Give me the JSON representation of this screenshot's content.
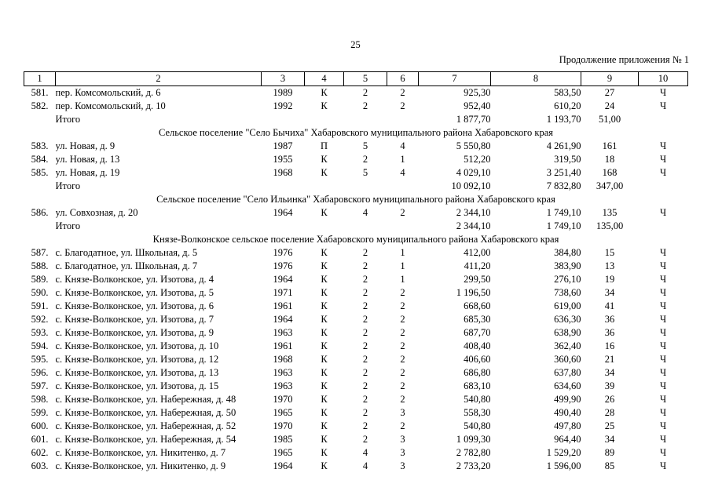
{
  "page": {
    "number": "25",
    "continuation": "Продолжение приложения № 1"
  },
  "table": {
    "columns": [
      "1",
      "2",
      "3",
      "4",
      "5",
      "6",
      "7",
      "8",
      "9",
      "10"
    ],
    "total_label": "Итого",
    "rows": [
      {
        "type": "data",
        "num": "581.",
        "address": "пер. Комсомольский, д. 6",
        "year": "1989",
        "material": "К",
        "floors": "2",
        "entrances": "2",
        "total_area": "925,30",
        "living_area": "583,50",
        "residents": "27",
        "ownership": "Ч"
      },
      {
        "type": "data",
        "num": "582.",
        "address": "пер. Комсомольский, д. 10",
        "year": "1992",
        "material": "К",
        "floors": "2",
        "entrances": "2",
        "total_area": "952,40",
        "living_area": "610,20",
        "residents": "24",
        "ownership": "Ч"
      },
      {
        "type": "total",
        "label": "Итого",
        "total_area": "1 877,70",
        "living_area": "1 193,70",
        "residents": "51,00"
      },
      {
        "type": "section",
        "title": "Сельское поселение \"Село Бычиха\" Хабаровского муниципального района Хабаровского края"
      },
      {
        "type": "data",
        "num": "583.",
        "address": "ул. Новая, д. 9",
        "year": "1987",
        "material": "П",
        "floors": "5",
        "entrances": "4",
        "total_area": "5 550,80",
        "living_area": "4 261,90",
        "residents": "161",
        "ownership": "Ч"
      },
      {
        "type": "data",
        "num": "584.",
        "address": "ул. Новая, д. 13",
        "year": "1955",
        "material": "К",
        "floors": "2",
        "entrances": "1",
        "total_area": "512,20",
        "living_area": "319,50",
        "residents": "18",
        "ownership": "Ч"
      },
      {
        "type": "data",
        "num": "585.",
        "address": "ул. Новая, д. 19",
        "year": "1968",
        "material": "К",
        "floors": "5",
        "entrances": "4",
        "total_area": "4 029,10",
        "living_area": "3 251,40",
        "residents": "168",
        "ownership": "Ч"
      },
      {
        "type": "total",
        "label": "Итого",
        "total_area": "10 092,10",
        "living_area": "7 832,80",
        "residents": "347,00"
      },
      {
        "type": "section",
        "title": "Сельское поселение \"Село Ильинка\" Хабаровского муниципального района Хабаровского края"
      },
      {
        "type": "data",
        "num": "586.",
        "address": "ул. Совхозная, д. 20",
        "year": "1964",
        "material": "К",
        "floors": "4",
        "entrances": "2",
        "total_area": "2 344,10",
        "living_area": "1 749,10",
        "residents": "135",
        "ownership": "Ч"
      },
      {
        "type": "total",
        "label": "Итого",
        "total_area": "2 344,10",
        "living_area": "1 749,10",
        "residents": "135,00"
      },
      {
        "type": "section",
        "title": "Князе-Волконское сельское поселение Хабаровского муниципального района Хабаровского края"
      },
      {
        "type": "data",
        "num": "587.",
        "address": "с. Благодатное, ул. Школьная, д. 5",
        "year": "1976",
        "material": "К",
        "floors": "2",
        "entrances": "1",
        "total_area": "412,00",
        "living_area": "384,80",
        "residents": "15",
        "ownership": "Ч"
      },
      {
        "type": "data",
        "num": "588.",
        "address": "с. Благодатное, ул. Школьная, д. 7",
        "year": "1976",
        "material": "К",
        "floors": "2",
        "entrances": "1",
        "total_area": "411,20",
        "living_area": "383,90",
        "residents": "13",
        "ownership": "Ч"
      },
      {
        "type": "data",
        "num": "589.",
        "address": "с. Князе-Волконское, ул. Изотова, д. 4",
        "year": "1964",
        "material": "К",
        "floors": "2",
        "entrances": "1",
        "total_area": "299,50",
        "living_area": "276,10",
        "residents": "19",
        "ownership": "Ч"
      },
      {
        "type": "data",
        "num": "590.",
        "address": "с. Князе-Волконское, ул. Изотова, д. 5",
        "year": "1971",
        "material": "К",
        "floors": "2",
        "entrances": "2",
        "total_area": "1 196,50",
        "living_area": "738,60",
        "residents": "34",
        "ownership": "Ч"
      },
      {
        "type": "data",
        "num": "591.",
        "address": "с. Князе-Волконское, ул. Изотова, д. 6",
        "year": "1961",
        "material": "К",
        "floors": "2",
        "entrances": "2",
        "total_area": "668,60",
        "living_area": "619,00",
        "residents": "41",
        "ownership": "Ч"
      },
      {
        "type": "data",
        "num": "592.",
        "address": "с. Князе-Волконское, ул. Изотова, д. 7",
        "year": "1964",
        "material": "К",
        "floors": "2",
        "entrances": "2",
        "total_area": "685,30",
        "living_area": "636,30",
        "residents": "36",
        "ownership": "Ч"
      },
      {
        "type": "data",
        "num": "593.",
        "address": "с. Князе-Волконское, ул. Изотова, д. 9",
        "year": "1963",
        "material": "К",
        "floors": "2",
        "entrances": "2",
        "total_area": "687,70",
        "living_area": "638,90",
        "residents": "36",
        "ownership": "Ч"
      },
      {
        "type": "data",
        "num": "594.",
        "address": "с. Князе-Волконское, ул. Изотова, д. 10",
        "year": "1961",
        "material": "К",
        "floors": "2",
        "entrances": "2",
        "total_area": "408,40",
        "living_area": "362,40",
        "residents": "16",
        "ownership": "Ч"
      },
      {
        "type": "data",
        "num": "595.",
        "address": "с. Князе-Волконское, ул. Изотова, д. 12",
        "year": "1968",
        "material": "К",
        "floors": "2",
        "entrances": "2",
        "total_area": "406,60",
        "living_area": "360,60",
        "residents": "21",
        "ownership": "Ч"
      },
      {
        "type": "data",
        "num": "596.",
        "address": "с. Князе-Волконское, ул. Изотова, д. 13",
        "year": "1963",
        "material": "К",
        "floors": "2",
        "entrances": "2",
        "total_area": "686,80",
        "living_area": "637,80",
        "residents": "34",
        "ownership": "Ч"
      },
      {
        "type": "data",
        "num": "597.",
        "address": "с. Князе-Волконское, ул. Изотова, д. 15",
        "year": "1963",
        "material": "К",
        "floors": "2",
        "entrances": "2",
        "total_area": "683,10",
        "living_area": "634,60",
        "residents": "39",
        "ownership": "Ч"
      },
      {
        "type": "data",
        "num": "598.",
        "address": "с. Князе-Волконское, ул. Набережная, д. 48",
        "year": "1970",
        "material": "К",
        "floors": "2",
        "entrances": "2",
        "total_area": "540,80",
        "living_area": "499,90",
        "residents": "26",
        "ownership": "Ч"
      },
      {
        "type": "data",
        "num": "599.",
        "address": "с. Князе-Волконское, ул. Набережная, д. 50",
        "year": "1965",
        "material": "К",
        "floors": "2",
        "entrances": "3",
        "total_area": "558,30",
        "living_area": "490,40",
        "residents": "28",
        "ownership": "Ч"
      },
      {
        "type": "data",
        "num": "600.",
        "address": "с. Князе-Волконское, ул. Набережная, д. 52",
        "year": "1970",
        "material": "К",
        "floors": "2",
        "entrances": "2",
        "total_area": "540,80",
        "living_area": "497,80",
        "residents": "25",
        "ownership": "Ч"
      },
      {
        "type": "data",
        "num": "601.",
        "address": "с. Князе-Волконское, ул. Набережная, д. 54",
        "year": "1985",
        "material": "К",
        "floors": "2",
        "entrances": "3",
        "total_area": "1 099,30",
        "living_area": "964,40",
        "residents": "34",
        "ownership": "Ч"
      },
      {
        "type": "data",
        "num": "602.",
        "address": "с. Князе-Волконское, ул. Никитенко, д. 7",
        "year": "1965",
        "material": "К",
        "floors": "4",
        "entrances": "3",
        "total_area": "2 782,80",
        "living_area": "1 529,20",
        "residents": "89",
        "ownership": "Ч"
      },
      {
        "type": "data",
        "num": "603.",
        "address": "с. Князе-Волконское, ул. Никитенко, д. 9",
        "year": "1964",
        "material": "К",
        "floors": "4",
        "entrances": "3",
        "total_area": "2 733,20",
        "living_area": "1 596,00",
        "residents": "85",
        "ownership": "Ч"
      }
    ]
  }
}
